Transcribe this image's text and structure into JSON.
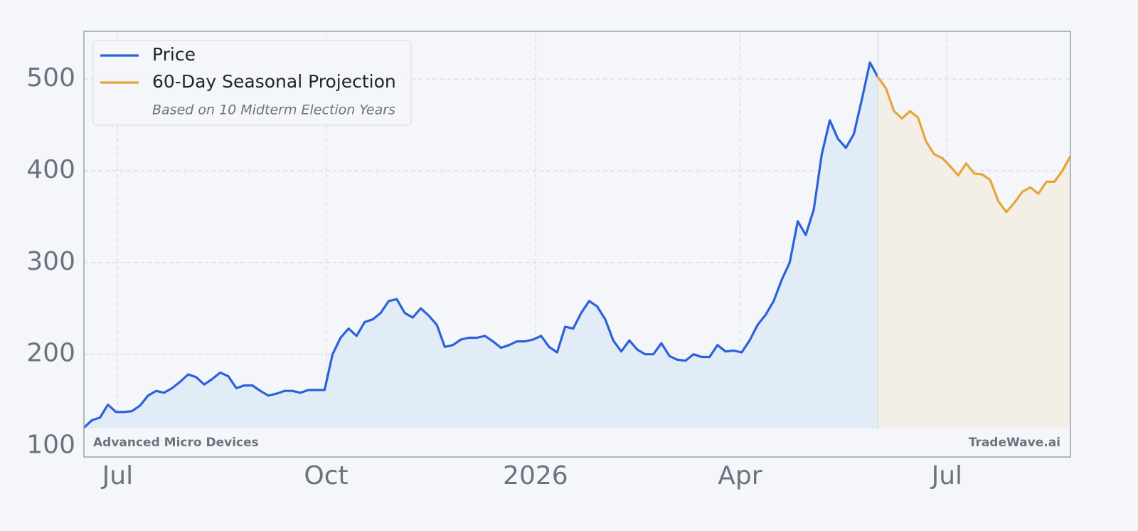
{
  "chart_data": {
    "type": "line",
    "xticks": [
      {
        "value": 4.2,
        "label": "Jul"
      },
      {
        "value": 30.2,
        "label": "Oct"
      },
      {
        "value": 56.3,
        "label": "2026"
      },
      {
        "value": 81.8,
        "label": "Apr"
      },
      {
        "value": 107.6,
        "label": "Jul"
      }
    ],
    "xlim": [
      0,
      123
    ],
    "ylim": [
      88,
      552
    ],
    "yticks": [
      100,
      200,
      300,
      400,
      500
    ],
    "grid": true,
    "legend": "upper left",
    "legend_note": "Based on 10 Midterm Election Years",
    "footer_left": "Advanced Micro Devices",
    "footer_right": "TradeWave.ai",
    "series": [
      {
        "name": "Price",
        "color": "#2a62d9",
        "values": [
          120,
          128,
          131,
          145,
          137,
          137,
          138,
          144,
          155,
          160,
          158,
          163,
          170,
          178,
          175,
          167,
          173,
          180,
          176,
          163,
          166,
          166,
          160,
          155,
          157,
          160,
          160,
          158,
          161,
          161,
          161,
          200,
          218,
          228,
          220,
          235,
          238,
          245,
          258,
          260,
          245,
          240,
          250,
          242,
          232,
          208,
          210,
          216,
          218,
          218,
          220,
          214,
          207,
          210,
          214,
          214,
          216,
          220,
          208,
          202,
          230,
          228,
          245,
          258,
          252,
          238,
          215,
          203,
          215,
          205,
          200,
          200,
          212,
          198,
          194,
          193,
          200,
          197,
          197,
          210,
          203,
          204,
          202,
          215,
          232,
          243,
          258,
          281,
          300,
          345,
          330,
          358,
          418,
          455,
          435,
          425,
          440,
          478,
          518,
          502
        ]
      },
      {
        "name": "60-Day Seasonal Projection",
        "color": "#e8a43a",
        "values": [
          null,
          null,
          null,
          null,
          null,
          null,
          null,
          null,
          null,
          null,
          null,
          null,
          null,
          null,
          null,
          null,
          null,
          null,
          null,
          null,
          null,
          null,
          null,
          null,
          null,
          null,
          null,
          null,
          null,
          null,
          null,
          null,
          null,
          null,
          null,
          null,
          null,
          null,
          null,
          null,
          null,
          null,
          null,
          null,
          null,
          null,
          null,
          null,
          null,
          null,
          null,
          null,
          null,
          null,
          null,
          null,
          null,
          null,
          null,
          null,
          null,
          null,
          null,
          null,
          null,
          null,
          null,
          null,
          null,
          null,
          null,
          null,
          null,
          null,
          null,
          null,
          null,
          null,
          null,
          null,
          null,
          null,
          null,
          null,
          null,
          null,
          null,
          null,
          null,
          null,
          null,
          null,
          null,
          null,
          null,
          null,
          null,
          null,
          null,
          502,
          490,
          465,
          457,
          465,
          458,
          432,
          418,
          414,
          405,
          395,
          408,
          397,
          396,
          390,
          367,
          355,
          365,
          377,
          382,
          375,
          388,
          388,
          400,
          416
        ]
      }
    ]
  }
}
